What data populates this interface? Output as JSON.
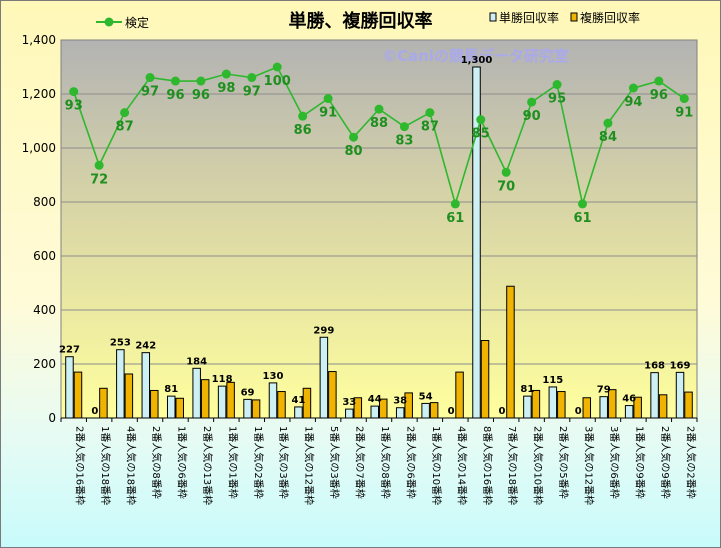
{
  "chart_data": {
    "type": "bar",
    "title": "単勝、複勝回収率",
    "watermark": "©Caniの競馬データ研究室",
    "ylim": [
      0,
      1400
    ],
    "yticks": [
      "0",
      "200",
      "400",
      "600",
      "800",
      "1,000",
      "1,200",
      "1,400"
    ],
    "categories": [
      "2番人気の16番枠",
      "1番人気の18番枠",
      "4番人気の18番枠",
      "2番人気の8番枠",
      "1番人気の6番枠",
      "2番人気の13番枠",
      "1番人気の1番枠",
      "1番人気の2番枠",
      "1番人気の3番枠",
      "1番人気の12番枠",
      "5番人気の3番枠",
      "2番人気の7番枠",
      "1番人気の8番枠",
      "2番人気の6番枠",
      "1番人気の10番枠",
      "4番人気の14番枠",
      "8番人気の16番枠",
      "7番人気の18番枠",
      "2番人気の10番枠",
      "2番人気の5番枠",
      "3番人気の12番枠",
      "3番人気の6番枠",
      "1番人気の9番枠",
      "2番人気の9番枠",
      "2番人気の2番枠"
    ],
    "series": [
      {
        "name": "単勝回収率",
        "color": "#cdf0f5",
        "values": [
          227,
          0,
          253,
          242,
          81,
          184,
          118,
          69,
          130,
          41,
          299,
          33,
          44,
          38,
          54,
          0,
          1300,
          0,
          81,
          115,
          0,
          79,
          46,
          168,
          169
        ],
        "labels": [
          "227",
          "0",
          "253",
          "242",
          "81",
          "184",
          "118",
          "69",
          "130",
          "41",
          "299",
          "33",
          "44",
          "38",
          "54",
          "0",
          "1,300",
          "0",
          "81",
          "115",
          "0",
          "79",
          "46",
          "168",
          "169"
        ]
      },
      {
        "name": "複勝回収率",
        "color": "#f0b400",
        "values": [
          170,
          110,
          163,
          102,
          73,
          142,
          132,
          67,
          98,
          110,
          172,
          75,
          70,
          93,
          57,
          170,
          287,
          488,
          102,
          98,
          75,
          105,
          77,
          86,
          96
        ]
      },
      {
        "name": "検定",
        "color": "#2eb82e",
        "values": [
          93,
          72,
          87,
          97,
          96,
          96,
          98,
          97,
          100,
          86,
          91,
          80,
          88,
          83,
          87,
          61,
          85,
          70,
          90,
          95,
          61,
          84,
          94,
          96,
          91
        ],
        "labels": [
          "93",
          "72",
          "87",
          "97",
          "96",
          "96",
          "98",
          "97",
          "100",
          "86",
          "91",
          "80",
          "88",
          "83",
          "87",
          "61",
          "85",
          "70",
          "90",
          "95",
          "61",
          "84",
          "94",
          "96",
          "91"
        ]
      }
    ]
  }
}
